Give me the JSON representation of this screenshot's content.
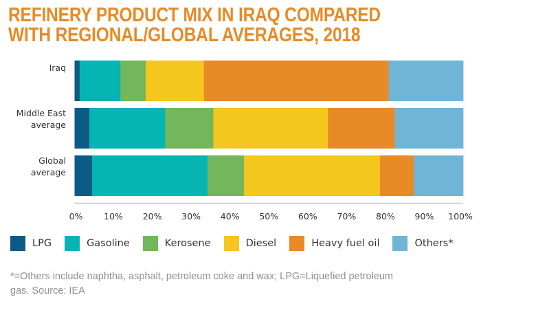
{
  "chart_data": {
    "type": "bar",
    "orientation": "horizontal",
    "stacked": true,
    "title": "REFINERY PRODUCT MIX IN IRAQ COMPARED WITH REGIONAL/GLOBAL AVERAGES, 2018",
    "title_lines": [
      "REFINERY PRODUCT MIX IN IRAQ COMPARED",
      "WITH REGIONAL/GLOBAL AVERAGES, 2018"
    ],
    "categories": [
      "Iraq",
      "Middle East average",
      "Global average"
    ],
    "category_lines": [
      [
        "Iraq"
      ],
      [
        "Middle East",
        "average"
      ],
      [
        "Global",
        "average"
      ]
    ],
    "series": [
      {
        "name": "LPG",
        "color": "#0c5a86",
        "values": [
          1.3,
          3.8,
          4.5
        ]
      },
      {
        "name": "Gasoline",
        "color": "#05b5b3",
        "values": [
          10.5,
          19.5,
          29.7
        ]
      },
      {
        "name": "Kerosene",
        "color": "#74b65c",
        "values": [
          6.5,
          12.4,
          9.4
        ]
      },
      {
        "name": "Diesel",
        "color": "#f3c71d",
        "values": [
          15.0,
          29.5,
          35.0
        ]
      },
      {
        "name": "Heavy fuel oil",
        "color": "#e88a25",
        "values": [
          47.5,
          17.2,
          8.7
        ]
      },
      {
        "name": "Others",
        "color": "#6fb6d6",
        "values": [
          19.2,
          17.6,
          12.7
        ]
      }
    ],
    "xlabel": "",
    "ylabel": "",
    "xlim": [
      0,
      100
    ],
    "xticks": [
      "0%",
      "10%",
      "20%",
      "30%",
      "40%",
      "50%",
      "60%",
      "70%",
      "80%",
      "90%",
      "100%"
    ],
    "grid": false,
    "legend_position": "bottom",
    "legend_labels": [
      "LPG",
      "Gasoline",
      "Kerosene",
      "Diesel",
      "Heavy fuel oil",
      "Others*"
    ],
    "footnote": "*=Others include naphtha, asphalt, petroleum coke and wax; LPG=Liquefied petroleum gas. Source: IEA",
    "footnote_lines": [
      "*=Others include naphtha, asphalt, petroleum coke and wax; LPG=Liquefied petroleum",
      "gas. Source: IEA"
    ]
  },
  "colors": {
    "title": "#e88a25",
    "axis_line": "#c8c8c8",
    "tick_text": "#333333",
    "footnote_text": "#8f8f8f"
  }
}
